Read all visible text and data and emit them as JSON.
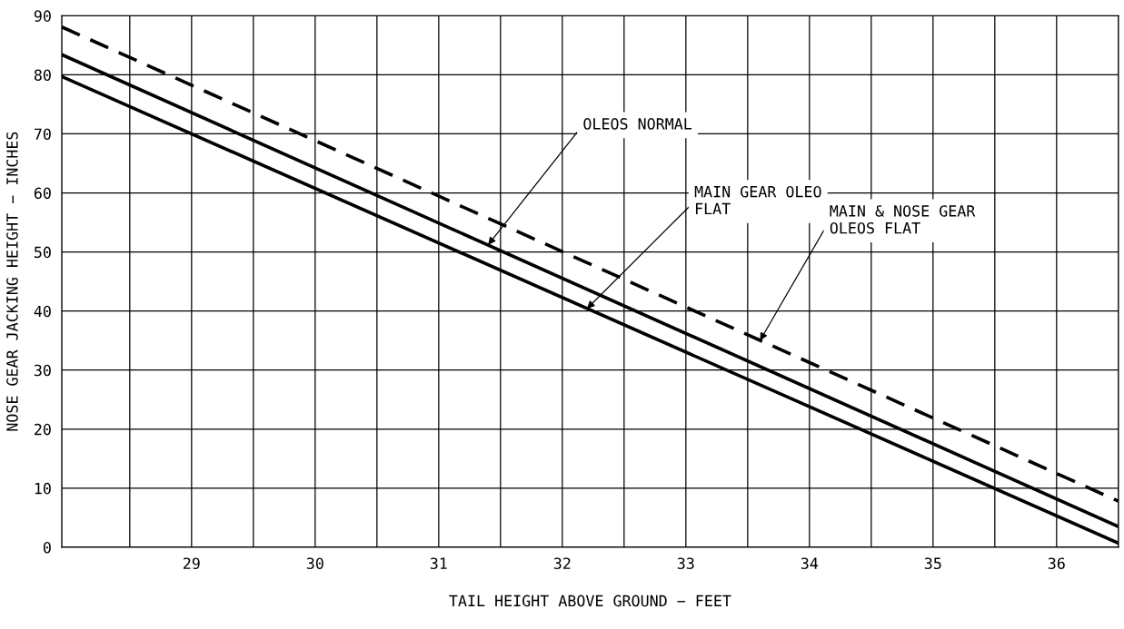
{
  "chart_data": {
    "type": "line",
    "xlabel": "TAIL HEIGHT ABOVE GROUND − FEET",
    "ylabel": "NOSE GEAR JACKING HEIGHT − INCHES",
    "x": [
      27.95,
      36.5
    ],
    "series": [
      {
        "color": "#000000",
        "values": [
          88.1,
          7.8
        ],
        "line_style": "dashed"
      },
      {
        "color": "#000000",
        "values": [
          83.4,
          3.5
        ],
        "line_style": "solid"
      },
      {
        "color": "#000000",
        "values": [
          79.7,
          0.7
        ],
        "line_style": "solid"
      }
    ],
    "annotations": [
      {
        "text": "OLEOS NORMAL",
        "x": 31.4,
        "y": 51.2
      },
      {
        "text": "MAIN GEAR OLEO\nFLAT",
        "x": 32.2,
        "y": 40.4
      },
      {
        "text": "MAIN & NOSE GEAR\nOLEOS FLAT",
        "x": 33.6,
        "y": 35.0
      }
    ],
    "xlim": [
      27.95,
      36.5
    ],
    "xticks": [
      {
        "value": 28.5,
        "label": null
      },
      29,
      {
        "value": 29.5,
        "label": null
      },
      30,
      {
        "value": 30.5,
        "label": null
      },
      31,
      {
        "value": 31.5,
        "label": null
      },
      32,
      {
        "value": 32.5,
        "label": null
      },
      33,
      {
        "value": 33.5,
        "label": null
      },
      34,
      {
        "value": 34.5,
        "label": null
      },
      35,
      {
        "value": 35.5,
        "label": null
      },
      36
    ],
    "ylim": [
      0,
      90
    ],
    "yticks": [
      0,
      10,
      20,
      30,
      40,
      50,
      60,
      70,
      80,
      90
    ],
    "grid": true,
    "marker": "none"
  }
}
